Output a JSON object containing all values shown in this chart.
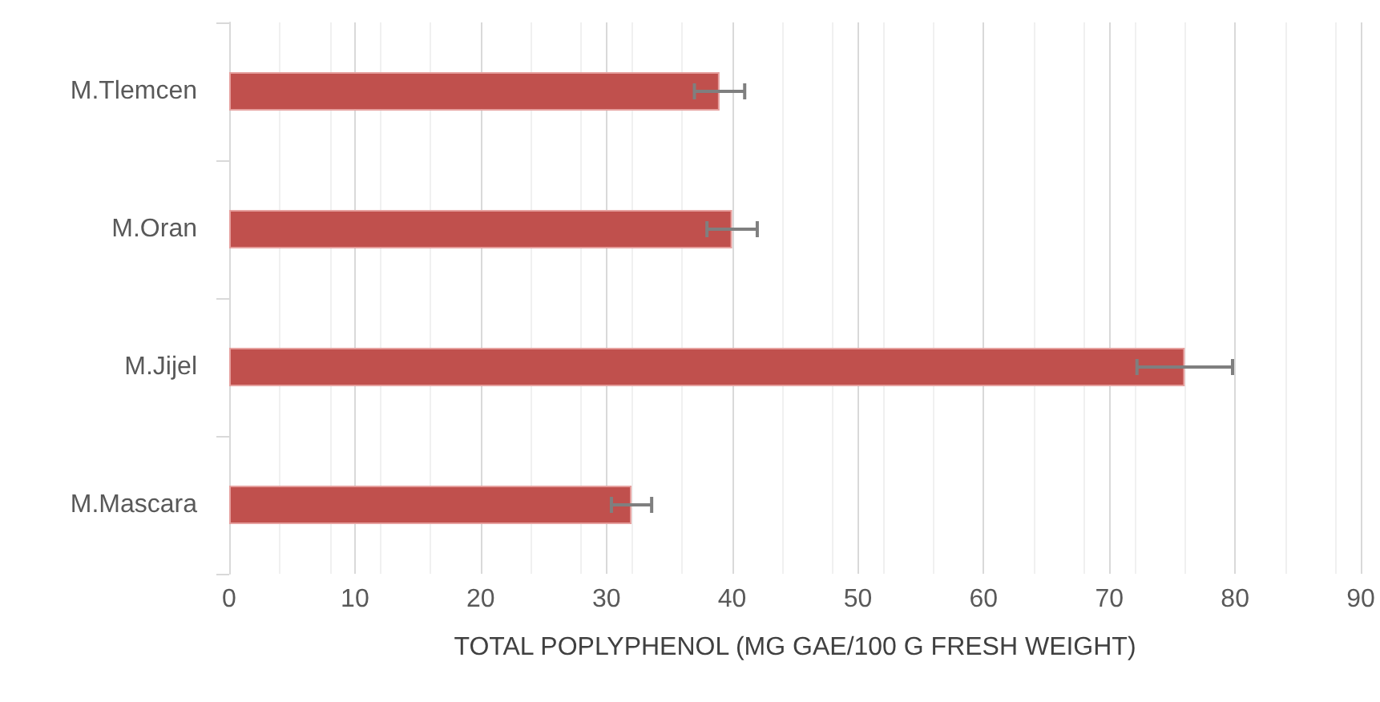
{
  "chart_data": {
    "type": "bar",
    "orientation": "horizontal",
    "xlabel": "TOTAL POPLYPHENOL (MG GAE/100 G FRESH WEIGHT)",
    "categories": [
      "M.Tlemcen",
      "M.Oran",
      "M.Jijel",
      "M.Mascara"
    ],
    "values": [
      39,
      40,
      76,
      32
    ],
    "errors": [
      2,
      2,
      3.8,
      1.6
    ],
    "color": "#c0504d",
    "xlim": [
      0,
      90
    ],
    "xticks": [
      0,
      10,
      20,
      30,
      40,
      50,
      60,
      70,
      80,
      90
    ],
    "grid": "x"
  }
}
